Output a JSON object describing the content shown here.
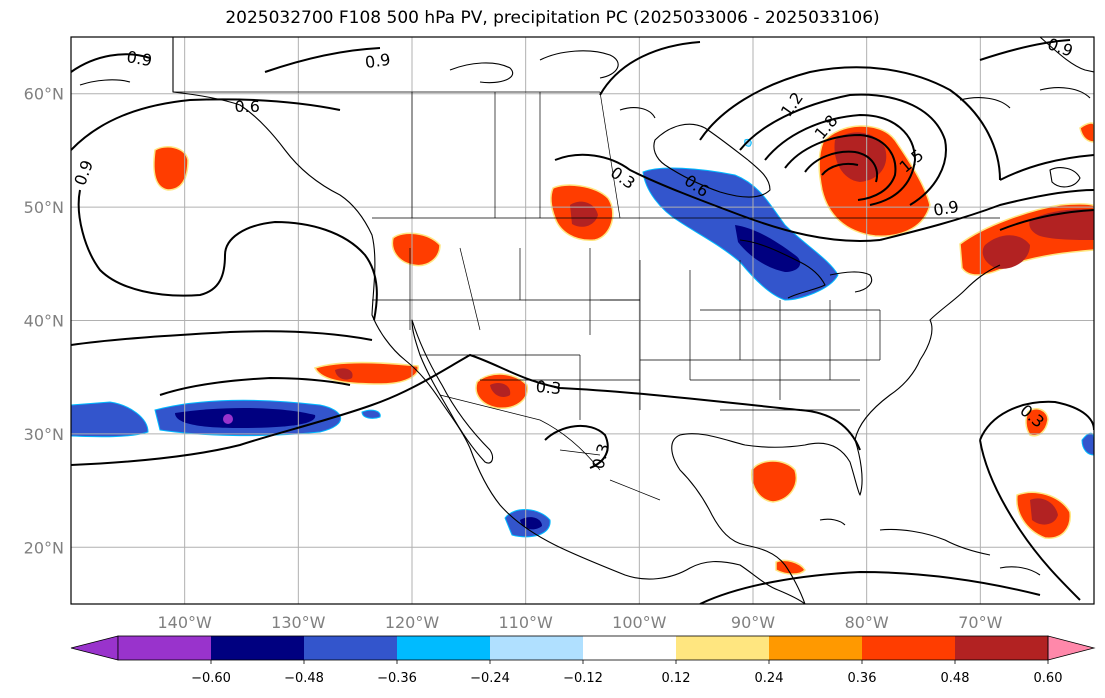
{
  "title": "2025032700 F108 500 hPa PV, precipitation PC (2025033006 - 2025033106)",
  "map": {
    "lon_range": [
      -150,
      -60
    ],
    "lat_range": [
      15,
      65
    ],
    "lon_ticks": [
      {
        "lon": -140,
        "label": "140°W"
      },
      {
        "lon": -130,
        "label": "130°W"
      },
      {
        "lon": -120,
        "label": "120°W"
      },
      {
        "lon": -110,
        "label": "110°W"
      },
      {
        "lon": -100,
        "label": "100°W"
      },
      {
        "lon": -90,
        "label": "90°W"
      },
      {
        "lon": -80,
        "label": "80°W"
      },
      {
        "lon": -70,
        "label": "70°W"
      }
    ],
    "lat_ticks": [
      {
        "lat": 20,
        "label": "20°N"
      },
      {
        "lat": 30,
        "label": "30°N"
      },
      {
        "lat": 40,
        "label": "40°N"
      },
      {
        "lat": 50,
        "label": "50°N"
      },
      {
        "lat": 60,
        "label": "60°N"
      }
    ],
    "grid": true,
    "contour_labels": [
      {
        "text": "0.9",
        "lon": -144,
        "lat": 63,
        "rotate": 10
      },
      {
        "text": "0.9",
        "lon": -123,
        "lat": 62.8,
        "rotate": -8
      },
      {
        "text": "0.6",
        "lon": -134.5,
        "lat": 58.8,
        "rotate": 0
      },
      {
        "text": "0.9",
        "lon": -148.8,
        "lat": 53,
        "rotate": -70
      },
      {
        "text": "0.3",
        "lon": -101.5,
        "lat": 52.5,
        "rotate": 35
      },
      {
        "text": "0.6",
        "lon": -95,
        "lat": 51.8,
        "rotate": 35
      },
      {
        "text": "1.2",
        "lon": -86.5,
        "lat": 59,
        "rotate": -55
      },
      {
        "text": "1.8",
        "lon": -83.5,
        "lat": 57,
        "rotate": -50
      },
      {
        "text": "1.5",
        "lon": -76,
        "lat": 54,
        "rotate": -40
      },
      {
        "text": "0.9",
        "lon": -73,
        "lat": 49.8,
        "rotate": -10
      },
      {
        "text": "0.9",
        "lon": -63,
        "lat": 64,
        "rotate": 20
      },
      {
        "text": "0.3",
        "lon": -108,
        "lat": 34,
        "rotate": 5
      },
      {
        "text": "0.3",
        "lon": -103.3,
        "lat": 28,
        "rotate": -75
      },
      {
        "text": "0.3",
        "lon": -65.5,
        "lat": 31.5,
        "rotate": 40
      }
    ]
  },
  "colorbar": {
    "labels": [
      "−0.60",
      "−0.48",
      "−0.36",
      "−0.24",
      "−0.12",
      "0.12",
      "0.24",
      "0.36",
      "0.48",
      "0.60"
    ],
    "colors": {
      "under": "#9933cc",
      "bins": [
        "#9933cc",
        "#000080",
        "#3355cc",
        "#00bbff",
        "#b0e0ff",
        "#ffffff",
        "#ffe680",
        "#ff9900",
        "#ff3d00",
        "#b22222"
      ],
      "over": "#ff88aa"
    }
  },
  "colors": {
    "coast": "#000000",
    "contour": "#000000",
    "grid": "#b0b0b0"
  }
}
